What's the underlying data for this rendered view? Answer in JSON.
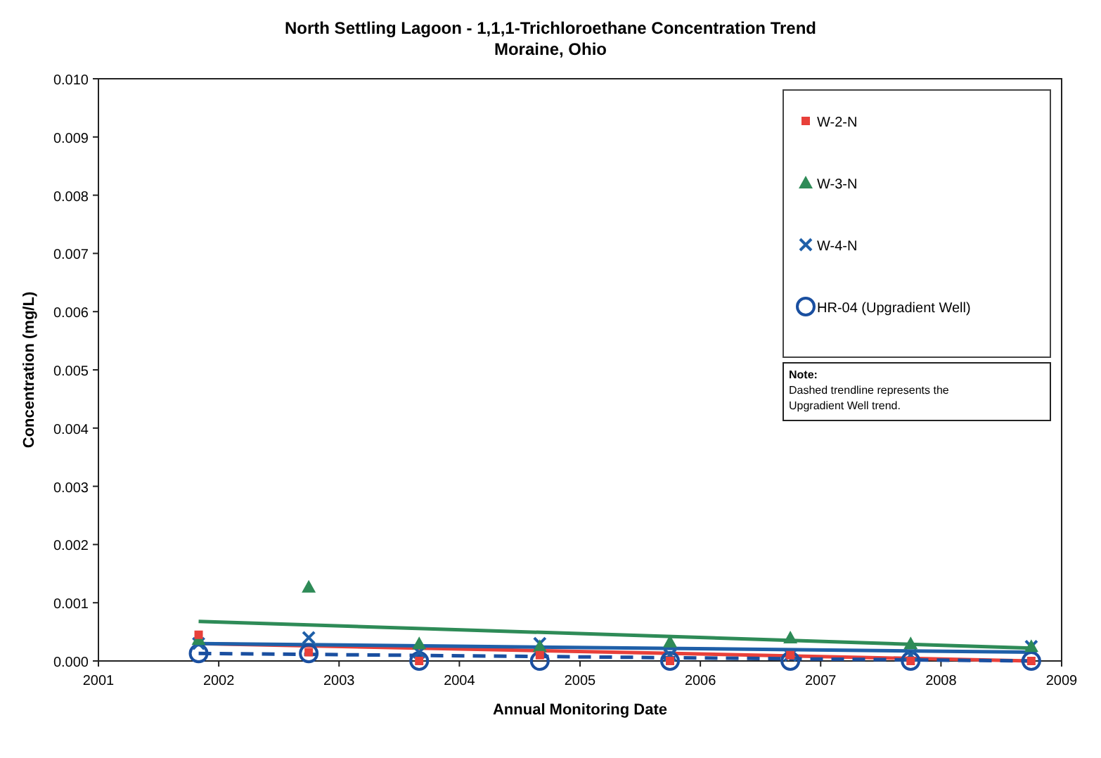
{
  "chart_data": {
    "type": "scatter",
    "title": "North Settling Lagoon - 1,1,1-Trichloroethane Concentration Trend",
    "subtitle": "Moraine, Ohio",
    "xlabel": "Annual Monitoring Date",
    "ylabel": "Concentration (mg/L)",
    "x": [
      "2001-11",
      "2002-10",
      "2003-09",
      "2004-09",
      "2005-10",
      "2006-10",
      "2007-10",
      "2008-10"
    ],
    "series": [
      {
        "name": "W-2-N",
        "color": "#e8403a",
        "marker": "square",
        "values": [
          0.00045,
          0.00015,
          0.0,
          0.0001,
          0.0,
          0.0001,
          0.0,
          0.0
        ]
      },
      {
        "name": "W-3-N",
        "color": "#2e8b57",
        "marker": "triangle",
        "values": [
          0.00037,
          0.00127,
          0.0003,
          0.00025,
          0.00033,
          0.0004,
          0.0003,
          0.00025
        ]
      },
      {
        "name": "W-4-N",
        "color": "#1f5fa8",
        "marker": "cross",
        "values": [
          0.0003,
          0.0004,
          0.00015,
          0.0003,
          0.0001,
          0.0001,
          0.0001,
          0.00025
        ]
      },
      {
        "name": "HR-04 (Upgradient Well)",
        "color": "#1a4fa0",
        "marker": "circle",
        "values": [
          0.00013,
          0.00013,
          0.0,
          0.0,
          0.0,
          0.0,
          0.0,
          0.0
        ]
      },
      {
        "type": "line",
        "color": "#e8403a",
        "line_style": "solid",
        "x": [
          "2001-11",
          "2008-10"
        ],
        "values": [
          0.0003,
          0.0
        ]
      },
      {
        "type": "line",
        "color": "#2e8b57",
        "line_style": "solid",
        "x": [
          "2001-11",
          "2008-10"
        ],
        "values": [
          0.00068,
          0.00022
        ]
      },
      {
        "type": "line",
        "color": "#1f5fa8",
        "line_style": "solid",
        "x": [
          "2001-11",
          "2008-10"
        ],
        "values": [
          0.0003,
          0.00015
        ]
      },
      {
        "type": "line",
        "color": "#1a4fa0",
        "line_style": "dashed",
        "x": [
          "2001-11",
          "2008-10"
        ],
        "values": [
          0.00013,
          0.0
        ]
      }
    ],
    "xlim": [
      "2001",
      "2009"
    ],
    "xticks": [
      "2001",
      "2002",
      "2003",
      "2004",
      "2005",
      "2006",
      "2007",
      "2008",
      "2009"
    ],
    "ylim": [
      0,
      0.01
    ],
    "yticks": [
      {
        "value": 0,
        "label": "0.000"
      },
      {
        "value": 0.001,
        "label": "0.001"
      },
      {
        "value": 0.002,
        "label": "0.002"
      },
      {
        "value": 0.003,
        "label": "0.003"
      },
      {
        "value": 0.004,
        "label": "0.004"
      },
      {
        "value": 0.005,
        "label": "0.005"
      },
      {
        "value": 0.006,
        "label": "0.006"
      },
      {
        "value": 0.007,
        "label": "0.007"
      },
      {
        "value": 0.008,
        "label": "0.008"
      },
      {
        "value": 0.009,
        "label": "0.009"
      },
      {
        "value": 0.01,
        "label": "0.010"
      }
    ],
    "grid": false,
    "legend": "top right",
    "annotations": [
      "Note:\nDashed trendline represents the\nUpgradient Well trend."
    ]
  }
}
